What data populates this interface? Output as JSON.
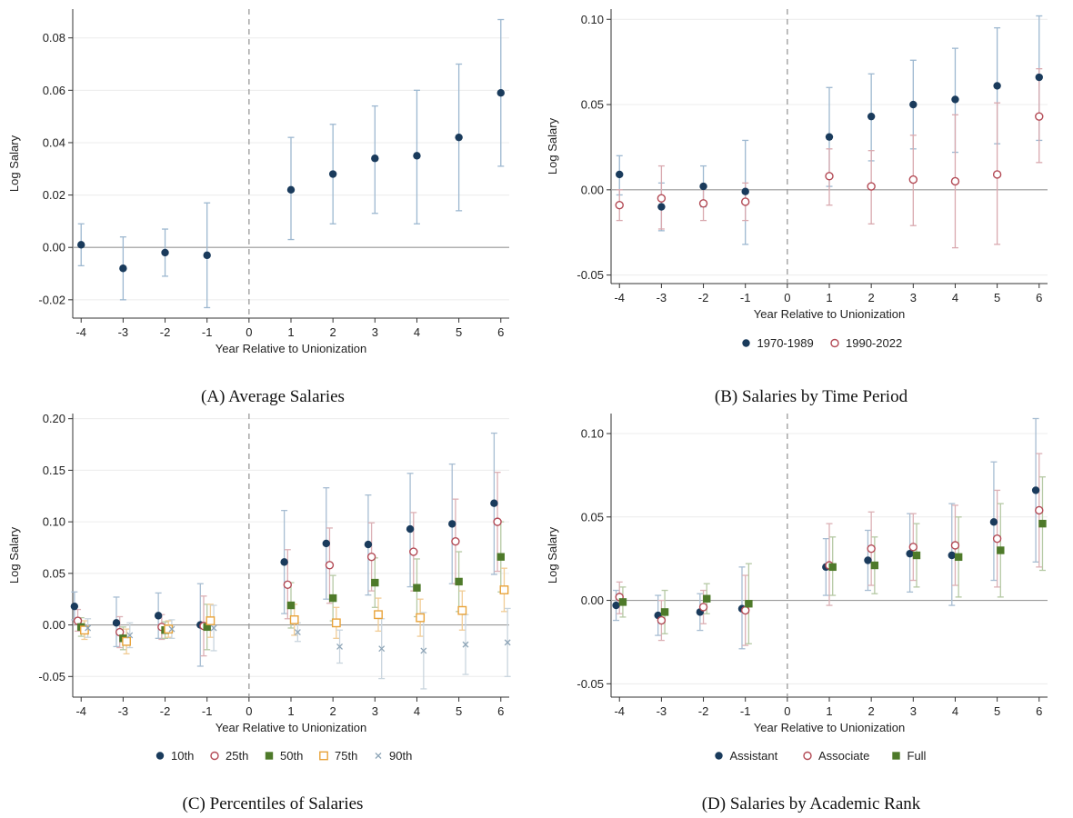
{
  "chart_data": [
    {
      "panel": "A",
      "type": "scatter",
      "caption": "(A) Average Salaries",
      "xlabel": "Year Relative to Unionization",
      "ylabel": "Log Salary",
      "x_ticks": [
        -4,
        -3,
        -2,
        -1,
        0,
        1,
        2,
        3,
        4,
        5,
        6
      ],
      "y_ticks": [
        -0.02,
        0.0,
        0.02,
        0.04,
        0.06,
        0.08
      ],
      "y_tick_labels": [
        "-0.02",
        "0.00",
        "0.02",
        "0.04",
        "0.06",
        "0.08"
      ],
      "xlim": [
        -4.2,
        6.2
      ],
      "ylim": [
        -0.027,
        0.091
      ],
      "event_line_x": 0,
      "grid": true,
      "legend": [],
      "colors": {
        "ci": "#9db8d0",
        "line": "#9a9a9a",
        "grid": "#ececec"
      },
      "series": [
        {
          "color": "#1a3b5c",
          "marker": "filled-circle",
          "x": [
            -4,
            -3,
            -2,
            -1,
            1,
            2,
            3,
            4,
            5,
            6
          ],
          "values": [
            0.001,
            -0.008,
            -0.002,
            -0.003,
            0.022,
            0.028,
            0.034,
            0.035,
            0.042,
            0.059
          ],
          "ci_low": [
            -0.007,
            -0.02,
            -0.011,
            -0.023,
            0.003,
            0.009,
            0.013,
            0.009,
            0.014,
            0.031
          ],
          "ci_high": [
            0.009,
            0.004,
            0.007,
            0.017,
            0.042,
            0.047,
            0.054,
            0.06,
            0.07,
            0.087
          ]
        }
      ]
    },
    {
      "panel": "B",
      "type": "scatter",
      "caption": "(B) Salaries by Time Period",
      "xlabel": "Year Relative to Unionization",
      "ylabel": "Log Salary",
      "x_ticks": [
        -4,
        -3,
        -2,
        -1,
        0,
        1,
        2,
        3,
        4,
        5,
        6
      ],
      "y_ticks": [
        -0.05,
        0.0,
        0.05,
        0.1
      ],
      "y_tick_labels": [
        "-0.05",
        "0.00",
        "0.05",
        "0.10"
      ],
      "xlim": [
        -4.2,
        6.2
      ],
      "ylim": [
        -0.055,
        0.106
      ],
      "event_line_x": 0,
      "grid": true,
      "legend": [
        {
          "label": "1970-1989",
          "marker": "filled-circle",
          "color": "#1a3b5c"
        },
        {
          "label": "1990-2022",
          "marker": "hollow-circle",
          "color": "#b34a55"
        }
      ],
      "colors": {
        "line": "#9a9a9a",
        "grid": "#ececec"
      },
      "series": [
        {
          "name": "1970-1989",
          "color": "#1a3b5c",
          "ci_color": "#9db8d0",
          "marker": "filled-circle",
          "x": [
            -4,
            -3,
            -2,
            -1,
            1,
            2,
            3,
            4,
            5,
            6
          ],
          "values": [
            0.009,
            -0.01,
            0.002,
            -0.001,
            0.031,
            0.043,
            0.05,
            0.053,
            0.061,
            0.066
          ],
          "ci_low": [
            -0.003,
            -0.024,
            -0.01,
            -0.032,
            0.002,
            0.017,
            0.024,
            0.022,
            0.027,
            0.029
          ],
          "ci_high": [
            0.02,
            0.004,
            0.014,
            0.029,
            0.06,
            0.068,
            0.076,
            0.083,
            0.095,
            0.102
          ]
        },
        {
          "name": "1990-2022",
          "color": "#b34a55",
          "ci_color": "#d9a9af",
          "marker": "hollow-circle",
          "x": [
            -4,
            -3,
            -2,
            -1,
            1,
            2,
            3,
            4,
            5,
            6
          ],
          "values": [
            -0.009,
            -0.005,
            -0.008,
            -0.007,
            0.008,
            0.002,
            0.006,
            0.005,
            0.009,
            0.043
          ],
          "ci_low": [
            -0.018,
            -0.023,
            -0.018,
            -0.018,
            -0.009,
            -0.02,
            -0.021,
            -0.034,
            -0.032,
            0.016
          ],
          "ci_high": [
            0.0,
            0.014,
            0.002,
            0.004,
            0.024,
            0.023,
            0.032,
            0.044,
            0.051,
            0.071
          ]
        }
      ]
    },
    {
      "panel": "C",
      "type": "scatter",
      "caption": "(C) Percentiles of Salaries",
      "xlabel": "Year Relative to Unionization",
      "ylabel": "Log Salary",
      "x_ticks": [
        -4,
        -3,
        -2,
        -1,
        0,
        1,
        2,
        3,
        4,
        5,
        6
      ],
      "y_ticks": [
        -0.05,
        0.0,
        0.05,
        0.1,
        0.15,
        0.2
      ],
      "y_tick_labels": [
        "-0.05",
        "0.00",
        "0.05",
        "0.10",
        "0.15",
        "0.20"
      ],
      "xlim": [
        -4.2,
        6.2
      ],
      "ylim": [
        -0.07,
        0.205
      ],
      "event_line_x": 0,
      "grid": true,
      "legend": [
        {
          "label": "10th",
          "marker": "filled-circle",
          "color": "#1a3b5c"
        },
        {
          "label": "25th",
          "marker": "hollow-circle",
          "color": "#b34a55"
        },
        {
          "label": "50th",
          "marker": "filled-square",
          "color": "#4e7a2a"
        },
        {
          "label": "75th",
          "marker": "hollow-square",
          "color": "#e8a33a"
        },
        {
          "label": "90th",
          "marker": "x",
          "color": "#8fa6b8"
        }
      ],
      "colors": {
        "line": "#9a9a9a",
        "grid": "#ececec"
      },
      "series": [
        {
          "name": "10th",
          "color": "#1a3b5c",
          "ci_color": "#a7bdd2",
          "marker": "filled-circle",
          "offset": -0.16,
          "x": [
            -4,
            -3,
            -2,
            -1,
            1,
            2,
            3,
            4,
            5,
            6
          ],
          "values": [
            0.018,
            0.002,
            0.009,
            0.0,
            0.061,
            0.079,
            0.078,
            0.093,
            0.098,
            0.118
          ],
          "ci_low": [
            0.005,
            -0.021,
            -0.013,
            -0.04,
            0.011,
            0.025,
            0.029,
            0.037,
            0.04,
            0.049
          ],
          "ci_high": [
            0.032,
            0.027,
            0.031,
            0.04,
            0.111,
            0.133,
            0.126,
            0.147,
            0.156,
            0.186
          ]
        },
        {
          "name": "25th",
          "color": "#b34a55",
          "ci_color": "#dcb0b5",
          "marker": "hollow-circle",
          "offset": -0.08,
          "x": [
            -4,
            -3,
            -2,
            -1,
            1,
            2,
            3,
            4,
            5,
            6
          ],
          "values": [
            0.004,
            -0.007,
            -0.002,
            -0.001,
            0.039,
            0.058,
            0.066,
            0.071,
            0.081,
            0.1
          ],
          "ci_low": [
            -0.006,
            -0.022,
            -0.014,
            -0.03,
            0.006,
            0.021,
            0.033,
            0.033,
            0.04,
            0.052
          ],
          "ci_high": [
            0.015,
            0.008,
            0.01,
            0.028,
            0.073,
            0.094,
            0.099,
            0.109,
            0.122,
            0.148
          ]
        },
        {
          "name": "50th",
          "color": "#4e7a2a",
          "ci_color": "#b5c9a4",
          "marker": "filled-square",
          "offset": 0.0,
          "x": [
            -4,
            -3,
            -2,
            -1,
            1,
            2,
            3,
            4,
            5,
            6
          ],
          "values": [
            -0.002,
            -0.013,
            -0.005,
            -0.002,
            0.019,
            0.026,
            0.041,
            0.036,
            0.042,
            0.066
          ],
          "ci_low": [
            -0.011,
            -0.024,
            -0.013,
            -0.024,
            -0.003,
            0.004,
            0.017,
            0.008,
            0.013,
            0.032
          ],
          "ci_high": [
            0.007,
            -0.002,
            0.003,
            0.02,
            0.041,
            0.048,
            0.065,
            0.064,
            0.071,
            0.1
          ]
        },
        {
          "name": "75th",
          "color": "#e8a33a",
          "ci_color": "#f1cc95",
          "marker": "hollow-square",
          "offset": 0.08,
          "x": [
            -4,
            -3,
            -2,
            -1,
            1,
            2,
            3,
            4,
            5,
            6
          ],
          "values": [
            -0.005,
            -0.016,
            -0.004,
            0.004,
            0.005,
            0.002,
            0.01,
            0.007,
            0.014,
            0.034
          ],
          "ci_low": [
            -0.014,
            -0.028,
            -0.012,
            -0.012,
            -0.01,
            -0.013,
            -0.006,
            -0.011,
            -0.005,
            0.013
          ],
          "ci_high": [
            0.004,
            -0.004,
            0.004,
            0.02,
            0.02,
            0.017,
            0.026,
            0.025,
            0.033,
            0.055
          ]
        },
        {
          "name": "90th",
          "color": "#8fa6b8",
          "ci_color": "#c9d5de",
          "marker": "x",
          "offset": 0.16,
          "x": [
            -4,
            -3,
            -2,
            -1,
            1,
            2,
            3,
            4,
            5,
            6
          ],
          "values": [
            -0.003,
            -0.01,
            -0.004,
            -0.003,
            -0.007,
            -0.021,
            -0.023,
            -0.025,
            -0.019,
            -0.017
          ],
          "ci_low": [
            -0.012,
            -0.022,
            -0.013,
            -0.025,
            -0.016,
            -0.037,
            -0.052,
            -0.062,
            -0.048,
            -0.05
          ],
          "ci_high": [
            0.006,
            0.002,
            0.005,
            0.019,
            0.002,
            -0.005,
            0.006,
            0.012,
            0.01,
            0.016
          ]
        }
      ]
    },
    {
      "panel": "D",
      "type": "scatter",
      "caption": "(D) Salaries by Academic Rank",
      "xlabel": "Year Relative to Unionization",
      "ylabel": "Log Salary",
      "x_ticks": [
        -4,
        -3,
        -2,
        -1,
        0,
        1,
        2,
        3,
        4,
        5,
        6
      ],
      "y_ticks": [
        -0.05,
        0.0,
        0.05,
        0.1
      ],
      "y_tick_labels": [
        "-0.05",
        "0.00",
        "0.05",
        "0.10"
      ],
      "xlim": [
        -4.2,
        6.2
      ],
      "ylim": [
        -0.058,
        0.112
      ],
      "event_line_x": 0,
      "grid": true,
      "legend": [
        {
          "label": "Assistant",
          "marker": "filled-circle",
          "color": "#1a3b5c"
        },
        {
          "label": "Associate",
          "marker": "hollow-circle",
          "color": "#b34a55"
        },
        {
          "label": "Full",
          "marker": "filled-square",
          "color": "#4e7a2a"
        }
      ],
      "colors": {
        "line": "#9a9a9a",
        "grid": "#ececec"
      },
      "series": [
        {
          "name": "Assistant",
          "color": "#1a3b5c",
          "ci_color": "#a7bdd2",
          "marker": "filled-circle",
          "offset": -0.08,
          "x": [
            -4,
            -3,
            -2,
            -1,
            1,
            2,
            3,
            4,
            5,
            6
          ],
          "values": [
            -0.003,
            -0.009,
            -0.007,
            -0.005,
            0.02,
            0.024,
            0.028,
            0.027,
            0.047,
            0.066
          ],
          "ci_low": [
            -0.012,
            -0.021,
            -0.018,
            -0.029,
            0.003,
            0.006,
            0.005,
            -0.003,
            0.012,
            0.023
          ],
          "ci_high": [
            0.006,
            0.003,
            0.004,
            0.02,
            0.037,
            0.042,
            0.052,
            0.058,
            0.083,
            0.109
          ]
        },
        {
          "name": "Associate",
          "color": "#b34a55",
          "ci_color": "#dcb0b5",
          "marker": "hollow-circle",
          "offset": 0.0,
          "x": [
            -4,
            -3,
            -2,
            -1,
            1,
            2,
            3,
            4,
            5,
            6
          ],
          "values": [
            0.002,
            -0.012,
            -0.004,
            -0.006,
            0.021,
            0.031,
            0.032,
            0.033,
            0.037,
            0.054
          ],
          "ci_low": [
            -0.008,
            -0.024,
            -0.014,
            -0.027,
            -0.003,
            0.009,
            0.012,
            0.009,
            0.008,
            0.02
          ],
          "ci_high": [
            0.011,
            0.0,
            0.006,
            0.015,
            0.046,
            0.053,
            0.052,
            0.057,
            0.066,
            0.088
          ]
        },
        {
          "name": "Full",
          "color": "#4e7a2a",
          "ci_color": "#b5c9a4",
          "marker": "filled-square",
          "offset": 0.08,
          "x": [
            -4,
            -3,
            -2,
            -1,
            1,
            2,
            3,
            4,
            5,
            6
          ],
          "values": [
            -0.001,
            -0.007,
            0.001,
            -0.002,
            0.02,
            0.021,
            0.027,
            0.026,
            0.03,
            0.046
          ],
          "ci_low": [
            -0.01,
            -0.02,
            -0.008,
            -0.026,
            0.003,
            0.004,
            0.008,
            0.002,
            0.002,
            0.018
          ],
          "ci_high": [
            0.008,
            0.006,
            0.01,
            0.022,
            0.038,
            0.038,
            0.046,
            0.05,
            0.058,
            0.074
          ]
        }
      ]
    }
  ]
}
